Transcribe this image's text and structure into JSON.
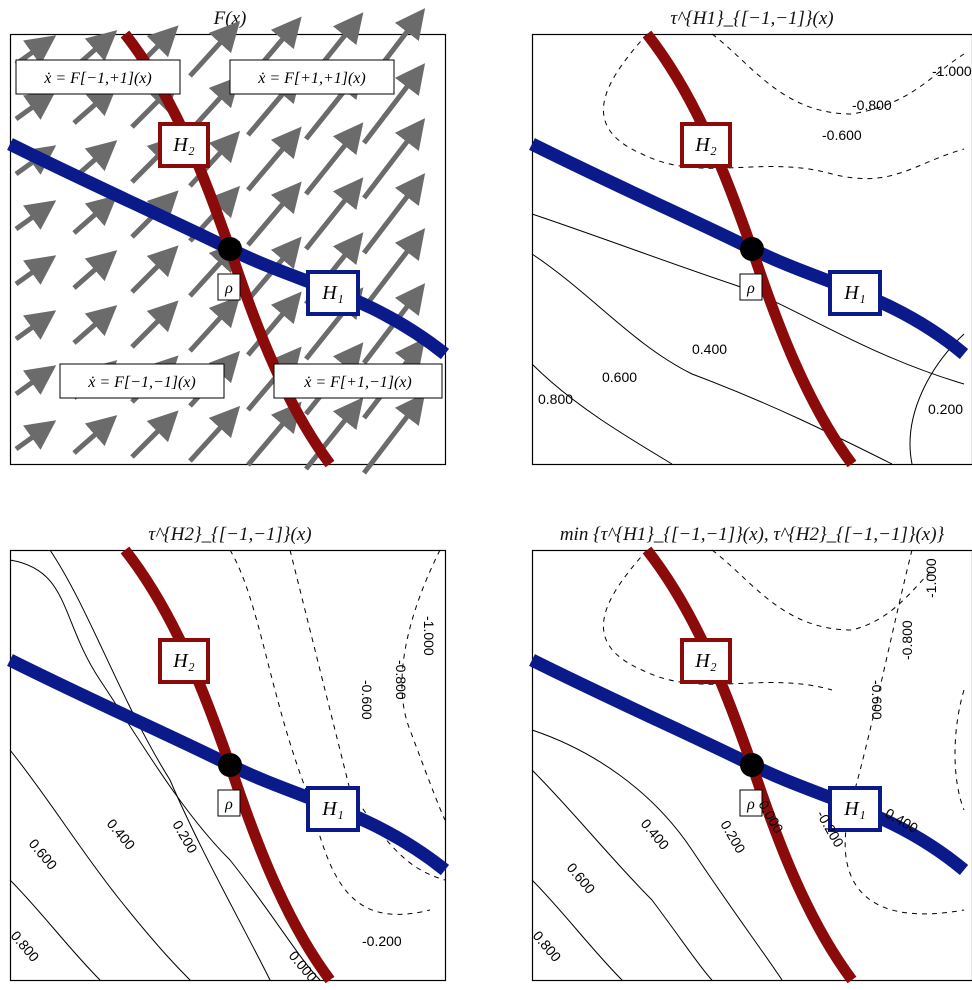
{
  "panels": [
    {
      "id": "vector-field",
      "title": "F(x)",
      "regions": [
        "ẋ = F[−1,+1](x)",
        "ẋ = F[+1,+1](x)",
        "ẋ = F[−1,−1](x)",
        "ẋ = F[+1,−1](x)"
      ]
    },
    {
      "id": "tau-h1",
      "title": "τ^{H1}_{[−1,−1]}(x)",
      "contour_labels": [
        "-1.000",
        "-0.800",
        "-0.600",
        "0.400",
        "0.600",
        "0.800",
        "0.200"
      ]
    },
    {
      "id": "tau-h2",
      "title": "τ^{H2}_{[−1,−1]}(x)",
      "contour_labels": [
        "-1.000",
        "-0.800",
        "-0.600",
        "0.400",
        "0.600",
        "0.200",
        "0.000",
        "-0.200",
        "0.800"
      ]
    },
    {
      "id": "tau-min",
      "title": "min {τ^{H1}_{[−1,−1]}(x), τ^{H2}_{[−1,−1]}(x)}",
      "contour_labels": [
        "-1.000",
        "-0.800",
        "-0.600",
        "0.400",
        "0.200",
        "0.000",
        "-0.200",
        "0.600",
        "0.400",
        "0.800"
      ]
    }
  ],
  "labels": {
    "h1": "H₁",
    "h2": "H₂",
    "rho": "ρ"
  },
  "colors": {
    "h1": "#0b1a8a",
    "h2": "#8b0a0a",
    "arrow": "#6b6b6b",
    "point": "#000000"
  }
}
